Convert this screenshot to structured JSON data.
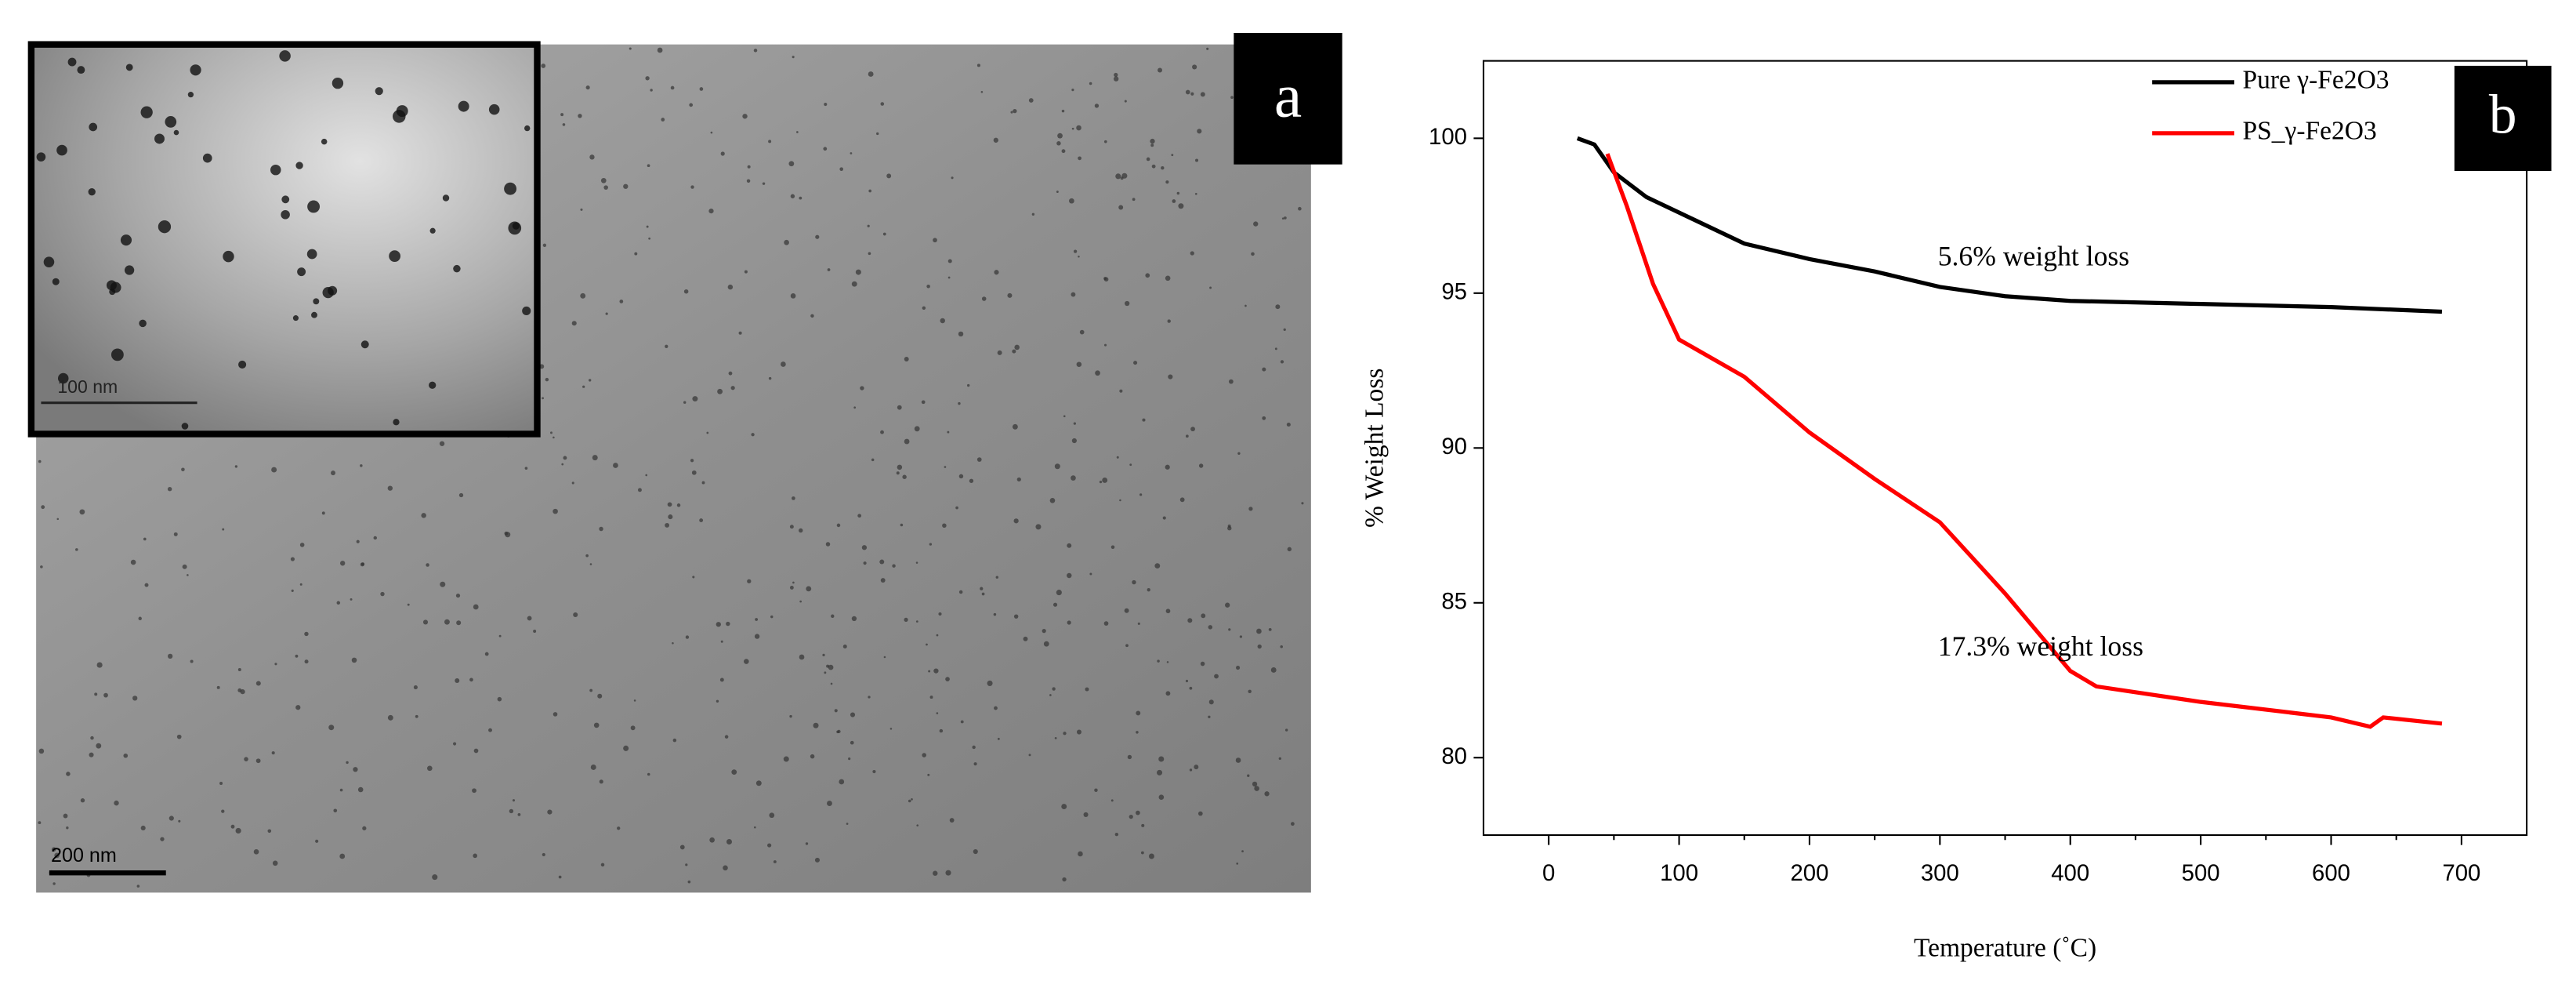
{
  "panel_a": {
    "label": "a",
    "scale_bar": "200 nm",
    "inset_scale_bar": "100 nm"
  },
  "chart_data": {
    "type": "line",
    "panel_label": "b",
    "x_label": "Temperature (˚C)",
    "y_label": "% Weight Loss",
    "xlim": [
      -50,
      750
    ],
    "xticks": [
      0,
      100,
      200,
      300,
      400,
      500,
      600,
      700
    ],
    "ylim": [
      77.5,
      102.5
    ],
    "yticks": [
      80,
      85,
      90,
      95,
      100
    ],
    "legend": "top-right",
    "grid": false,
    "series": [
      {
        "name": "Pure γ-Fe2O3",
        "color": "#000000",
        "x": [
          22,
          35,
          50,
          75,
          100,
          150,
          200,
          250,
          300,
          350,
          400,
          500,
          600,
          685
        ],
        "values": [
          100,
          99.8,
          98.9,
          98.1,
          97.6,
          96.6,
          96.1,
          95.7,
          95.2,
          94.9,
          94.75,
          94.65,
          94.55,
          94.4
        ]
      },
      {
        "name": "PS_γ-Fe2O3",
        "color": "#ff0000",
        "x": [
          45,
          60,
          80,
          100,
          150,
          200,
          250,
          300,
          350,
          400,
          420,
          500,
          600,
          630,
          640,
          685
        ],
        "values": [
          99.5,
          97.8,
          95.3,
          93.5,
          92.3,
          90.5,
          89.0,
          87.6,
          85.3,
          82.8,
          82.3,
          81.8,
          81.3,
          81.0,
          81.3,
          81.1
        ]
      }
    ],
    "annotations": [
      {
        "text": "5.6% weight loss",
        "x": 500,
        "y": 96.1
      },
      {
        "text": "17.3% weight loss",
        "x": 500,
        "y": 83.5
      }
    ]
  }
}
